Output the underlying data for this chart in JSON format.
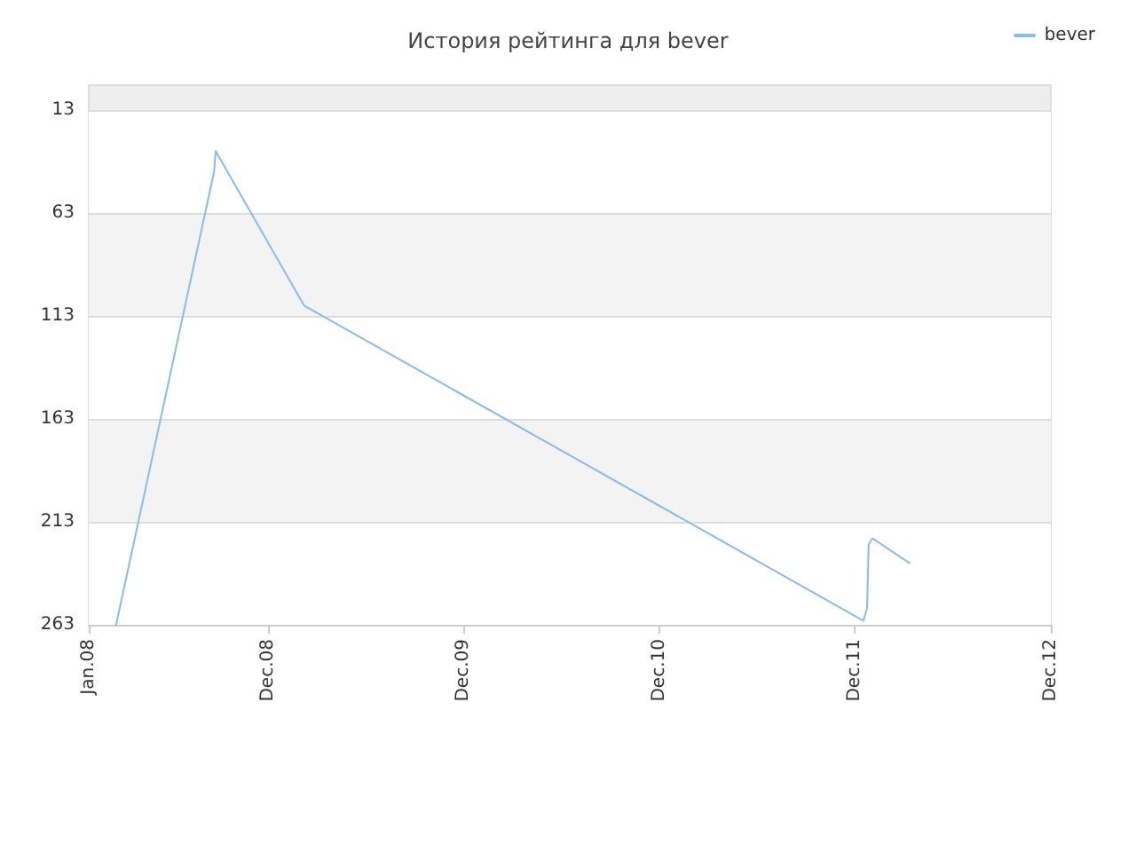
{
  "chart_data": {
    "type": "line",
    "title": "История рейтинга для bever",
    "legend": "top right",
    "grid": "y",
    "marker": "none",
    "line_style": "solid",
    "x": [
      "2008-02-21",
      "2008-08-22",
      "2008-08-25",
      "2009-02-06",
      "2011-12-17",
      "2011-12-24",
      "2011-12-27",
      "2012-01-03",
      "2012-03-12"
    ],
    "series": [
      {
        "name": "bever",
        "color": "#88bbee",
        "values": [
          263,
          43,
          33,
          108,
          261,
          255,
          224,
          221,
          233
        ]
      }
    ],
    "ylim": [
      263,
      1
    ],
    "yticks": [
      13,
      63,
      113,
      163,
      213,
      263
    ],
    "xlim": [
      "2008-01-01",
      "2012-12-01"
    ],
    "xticks": [
      {
        "value": "2008-01-01",
        "label": "Jan.08"
      },
      {
        "value": "2008-12-01",
        "label": "Dec.08"
      },
      {
        "value": "2009-12-01",
        "label": "Dec.09"
      },
      {
        "value": "2010-12-01",
        "label": "Dec.10"
      },
      {
        "value": "2011-12-01",
        "label": "Dec.11"
      },
      {
        "value": "2012-12-01",
        "label": "Dec.12"
      }
    ]
  }
}
